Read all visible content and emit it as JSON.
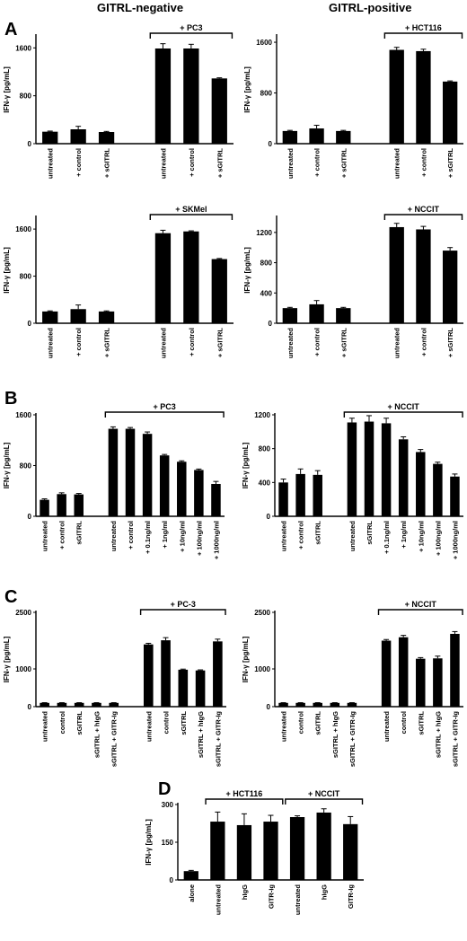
{
  "column_headers": {
    "left": "GITRL-negative",
    "right": "GITRL-positive"
  },
  "panel_letters": {
    "A": "A",
    "B": "B",
    "C": "C",
    "D": "D"
  },
  "chart_data": [
    {
      "id": "A1",
      "type": "bar",
      "panel": "A",
      "ylabel": "IFN-γ [pg/mL]",
      "ylim": [
        0,
        1800
      ],
      "yticks": [
        0,
        800,
        1600
      ],
      "bracket_label": "+ PC3",
      "bracket_range": [
        3,
        5
      ],
      "categories": [
        "untreated",
        "+ control",
        "+ sGITRL",
        "untreated",
        "+ control",
        "+ sGITRL"
      ],
      "values": [
        200,
        240,
        195,
        1590,
        1590,
        1090
      ],
      "errors": [
        10,
        50,
        10,
        80,
        70,
        10
      ]
    },
    {
      "id": "A2",
      "type": "bar",
      "panel": "A",
      "ylabel": "IFN-γ [pg/mL]",
      "ylim": [
        0,
        1700
      ],
      "yticks": [
        0,
        800,
        1600
      ],
      "bracket_label": "+ HCT116",
      "bracket_range": [
        3,
        5
      ],
      "categories": [
        "untreated",
        "+ control",
        "+ sGITRL",
        "untreated",
        "+ control",
        "+ sGITRL"
      ],
      "values": [
        200,
        240,
        200,
        1480,
        1460,
        980
      ],
      "errors": [
        10,
        50,
        10,
        40,
        30,
        10
      ]
    },
    {
      "id": "A3",
      "type": "bar",
      "panel": "A",
      "ylabel": "IFN-γ [pg/mL]",
      "ylim": [
        0,
        1800
      ],
      "yticks": [
        0,
        800,
        1600
      ],
      "bracket_label": "+ SKMel",
      "bracket_range": [
        3,
        5
      ],
      "categories": [
        "untreated",
        "+ control",
        "+ sGITRL",
        "untreated",
        "+ control",
        "+ sGITRL"
      ],
      "values": [
        200,
        240,
        200,
        1530,
        1560,
        1090
      ],
      "errors": [
        10,
        70,
        10,
        50,
        10,
        10
      ]
    },
    {
      "id": "A4",
      "type": "bar",
      "panel": "A",
      "ylabel": "IFN-γ [pg/mL]",
      "ylim": [
        0,
        1400
      ],
      "yticks": [
        0,
        400,
        800,
        1200
      ],
      "bracket_label": "+ NCCIT",
      "bracket_range": [
        3,
        5
      ],
      "categories": [
        "untreated",
        "+ control",
        "+ sGITRL",
        "untreated",
        "+ control",
        "+ sGITRL"
      ],
      "values": [
        200,
        250,
        200,
        1270,
        1240,
        960
      ],
      "errors": [
        10,
        50,
        10,
        50,
        40,
        40
      ]
    },
    {
      "id": "B1",
      "type": "bar",
      "panel": "B",
      "ylabel": "IFN-γ [pg/mL]",
      "ylim": [
        0,
        1600
      ],
      "yticks": [
        0,
        800,
        1600
      ],
      "bracket_label": "+ PC3",
      "bracket_range": [
        3,
        9
      ],
      "categories": [
        "untreated",
        "+ control",
        "sGITRL",
        "untreated",
        "+ control",
        "+ 0.1ng/ml",
        "+ 1ng/ml",
        "+ 10ng/ml",
        "+ 100ng/ml",
        "+ 1000ng/ml"
      ],
      "values": [
        260,
        350,
        345,
        1380,
        1380,
        1300,
        960,
        860,
        730,
        510
      ],
      "errors": [
        15,
        20,
        15,
        30,
        20,
        30,
        15,
        15,
        15,
        40
      ]
    },
    {
      "id": "B2",
      "type": "bar",
      "panel": "B",
      "ylabel": "IFN-γ [pg/mL]",
      "ylim": [
        0,
        1200
      ],
      "yticks": [
        0,
        400,
        800,
        1200
      ],
      "bracket_label": "+ NCCIT",
      "bracket_range": [
        3,
        9
      ],
      "categories": [
        "untreated",
        "+ control",
        "sGITRL",
        "untreated",
        "sGITRL",
        "+ 0.1ng/ml",
        "+ 1ng/ml",
        "+ 10ng/ml",
        "+ 100ng/ml",
        "+ 1000ng/ml"
      ],
      "values": [
        400,
        500,
        490,
        1110,
        1120,
        1100,
        910,
        760,
        620,
        470
      ],
      "errors": [
        40,
        60,
        50,
        50,
        70,
        60,
        30,
        30,
        20,
        30
      ]
    },
    {
      "id": "C1",
      "type": "bar",
      "panel": "C",
      "ylabel": "IFN-γ [pg/mL]",
      "ylim": [
        0,
        2500
      ],
      "yticks": [
        0,
        1000,
        2500
      ],
      "bracket_label": "+ PC-3",
      "bracket_range": [
        5,
        9
      ],
      "categories": [
        "untreated",
        "control",
        "sGITRL",
        "sGITRL + hIgG",
        "sGITRL + GITR-Ig",
        "untreated",
        "control",
        "sGITRL",
        "sGITRL + hIgG",
        "sGITRL + GITR-Ig"
      ],
      "values": [
        100,
        100,
        100,
        100,
        100,
        1650,
        1760,
        980,
        960,
        1730
      ],
      "errors": [
        5,
        5,
        5,
        5,
        5,
        30,
        70,
        15,
        15,
        60
      ]
    },
    {
      "id": "C2",
      "type": "bar",
      "panel": "C",
      "ylabel": "IFN-γ [pg/mL]",
      "ylim": [
        0,
        2500
      ],
      "yticks": [
        0,
        1000,
        2500
      ],
      "bracket_label": "+ NCCIT",
      "bracket_range": [
        5,
        9
      ],
      "categories": [
        "untreated",
        "control",
        "sGITRL",
        "sGITRL + hIgG",
        "sGITRL + GITR-Ig",
        "untreated",
        "control",
        "sGITRL",
        "sGITRL + hIgG",
        "sGITRL + GITR-Ig"
      ],
      "values": [
        100,
        100,
        100,
        100,
        100,
        1750,
        1840,
        1270,
        1280,
        1930
      ],
      "errors": [
        5,
        5,
        5,
        5,
        5,
        30,
        50,
        30,
        60,
        60
      ]
    },
    {
      "id": "D",
      "type": "bar",
      "panel": "D",
      "ylabel": "IFN-γ [pg/mL]",
      "ylim": [
        0,
        300
      ],
      "yticks": [
        0,
        150,
        300
      ],
      "brackets": [
        {
          "label": "+ HCT116",
          "range": [
            1,
            3
          ]
        },
        {
          "label": "+ NCCIT",
          "range": [
            4,
            6
          ]
        }
      ],
      "categories": [
        "alone",
        "untreated",
        "hIgG",
        "GITR-Ig",
        "untreated",
        "hIgG",
        "GITR-Ig"
      ],
      "values": [
        35,
        232,
        218,
        232,
        250,
        268,
        222
      ],
      "errors": [
        3,
        38,
        45,
        25,
        5,
        15,
        30
      ]
    }
  ]
}
